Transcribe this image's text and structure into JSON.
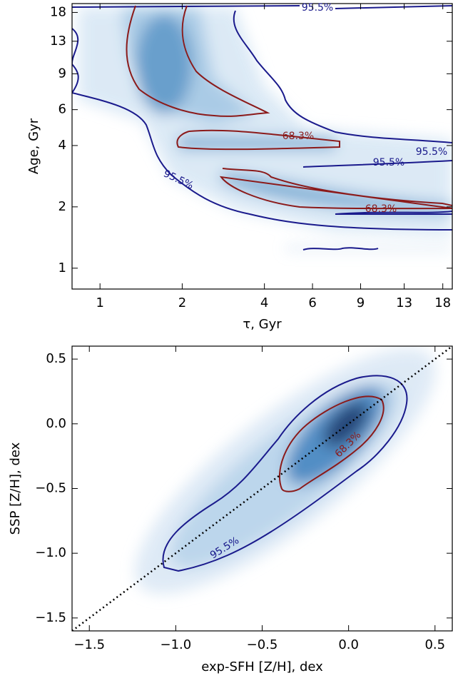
{
  "chart_data": [
    {
      "type": "density",
      "xlabel": "τ, Gyr",
      "ylabel": "Age, Gyr",
      "xscale": "log",
      "yscale": "log",
      "xlim": [
        0.79,
        19.5
      ],
      "ylim": [
        0.79,
        19.9
      ],
      "xticks": [
        1,
        2,
        4,
        6,
        9,
        13,
        18
      ],
      "yticks": [
        1,
        2,
        4,
        6,
        9,
        13,
        18
      ],
      "annotations": [
        "95.5%",
        "68.3%",
        "95.5%",
        "95.5%",
        "95.5%",
        "68.3%"
      ]
    },
    {
      "type": "density",
      "xlabel": "exp-SFH [Z/H], dex",
      "ylabel": "SSP [Z/H], dex",
      "xscale": "linear",
      "yscale": "linear",
      "xlim": [
        -1.6,
        0.6
      ],
      "ylim": [
        -1.6,
        0.6
      ],
      "xticks": [
        {
          "value": -1.5,
          "label": "−1.5"
        },
        {
          "value": -1.0,
          "label": "−1.0"
        },
        {
          "value": -0.5,
          "label": "−0.5"
        },
        {
          "value": 0.0,
          "label": "0.0"
        },
        0.5
      ],
      "yticks": [
        {
          "value": -1.5,
          "label": "−1.5"
        },
        {
          "value": -1.0,
          "label": "−1.0"
        },
        {
          "value": -0.5,
          "label": "−0.5"
        },
        {
          "value": 0.0,
          "label": "0.0"
        },
        0.5
      ],
      "annotations": [
        "68.3%",
        "95.5%"
      ]
    }
  ]
}
